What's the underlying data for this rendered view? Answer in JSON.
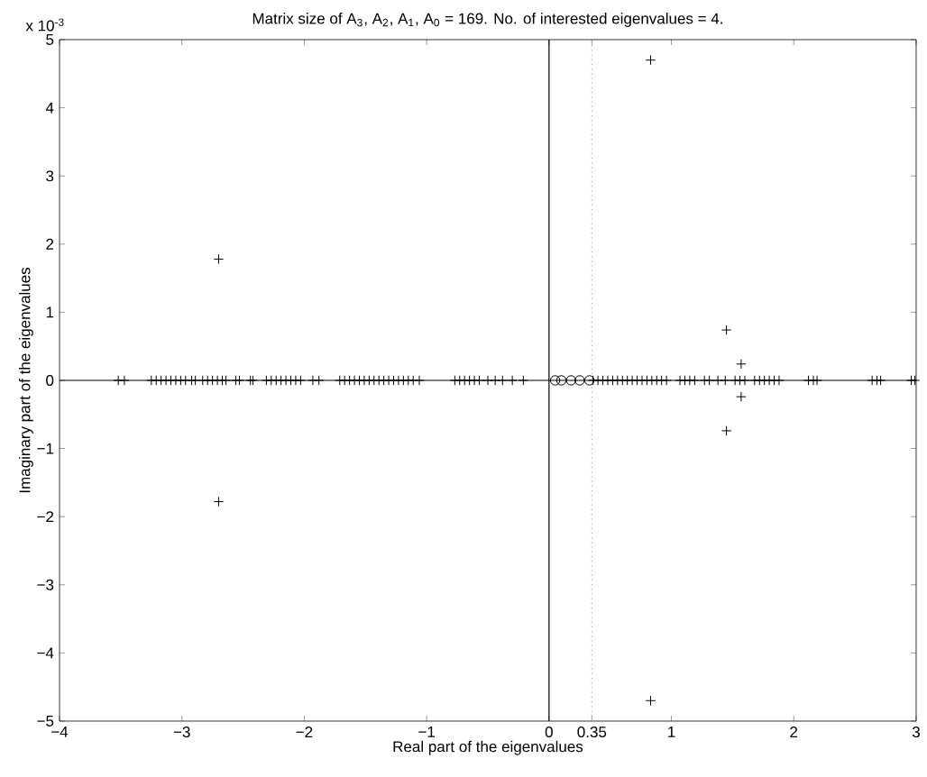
{
  "chart_data": {
    "type": "scatter",
    "title": "Matrix size of A$_{3}$, A$_{2}$, A$_{1}$, A$_{0}$ = 169. No. of interested eigenvalues = 4.",
    "xlabel": "Real part of the eigenvalues",
    "ylabel": "Imaginary part of the eigenvalues",
    "annotations": [
      "x 10$^{-3}$"
    ],
    "xlim": [
      -4,
      3
    ],
    "ylim": [
      -5,
      5
    ],
    "xticks": [
      {
        "value": -4,
        "label": "−4"
      },
      {
        "value": -3,
        "label": "−3"
      },
      {
        "value": -2,
        "label": "−2"
      },
      {
        "value": -1,
        "label": "−1"
      },
      0,
      0.35,
      1,
      2,
      3
    ],
    "yticks": [
      {
        "value": -5,
        "label": "−5"
      },
      {
        "value": -4,
        "label": "−4"
      },
      {
        "value": -3,
        "label": "−3"
      },
      {
        "value": -2,
        "label": "−2"
      },
      {
        "value": -1,
        "label": "−1"
      },
      0,
      1,
      2,
      3,
      4,
      5
    ],
    "grid": false,
    "series": [
      {
        "color": "#000000",
        "marker": "cross",
        "x": [
          -3.52,
          -3.47,
          -3.25,
          -3.21,
          -3.17,
          -3.13,
          -3.09,
          -3.05,
          -3.01,
          -2.97,
          -2.92,
          -2.89,
          -2.83,
          -2.79,
          -2.75,
          -2.71,
          -2.67,
          -2.64,
          -2.56,
          -2.53,
          -2.44,
          -2.42,
          -2.31,
          -2.27,
          -2.23,
          -2.19,
          -2.15,
          -2.11,
          -2.07,
          -2.03,
          -1.93,
          -1.88,
          -1.71,
          -1.67,
          -1.63,
          -1.59,
          -1.55,
          -1.51,
          -1.47,
          -1.43,
          -1.39,
          -1.35,
          -1.31,
          -1.27,
          -1.23,
          -1.19,
          -1.15,
          -1.11,
          -1.06,
          -0.77,
          -0.73,
          -0.69,
          -0.65,
          -0.61,
          -0.57,
          -0.5,
          -0.44,
          -0.38,
          -0.3,
          -0.21,
          0.36,
          0.4,
          0.44,
          0.48,
          0.52,
          0.56,
          0.6,
          0.64,
          0.68,
          0.72,
          0.76,
          0.8,
          0.84,
          0.88,
          0.92,
          0.96,
          1.07,
          1.11,
          1.15,
          1.19,
          1.27,
          1.31,
          1.38,
          1.44,
          1.52,
          1.56,
          1.6,
          1.68,
          1.72,
          1.76,
          1.8,
          1.84,
          1.88,
          2.12,
          2.16,
          2.19,
          2.64,
          2.68,
          2.71,
          2.96,
          2.99,
          -2.7,
          -2.7,
          0.83,
          0.83,
          1.45,
          1.45,
          1.57,
          1.57
        ],
        "values": [
          0,
          0,
          0,
          0,
          0,
          0,
          0,
          0,
          0,
          0,
          0,
          0,
          0,
          0,
          0,
          0,
          0,
          0,
          0,
          0,
          0,
          0,
          0,
          0,
          0,
          0,
          0,
          0,
          0,
          0,
          0,
          0,
          0,
          0,
          0,
          0,
          0,
          0,
          0,
          0,
          0,
          0,
          0,
          0,
          0,
          0,
          0,
          0,
          0,
          0,
          0,
          0,
          0,
          0,
          0,
          0,
          0,
          0,
          0,
          0,
          0,
          0,
          0,
          0,
          0,
          0,
          0,
          0,
          0,
          0,
          0,
          0,
          0,
          0,
          0,
          0,
          0,
          0,
          0,
          0,
          0,
          0,
          0,
          0,
          0,
          0,
          0,
          0,
          0,
          0,
          0,
          0,
          0,
          0,
          0,
          0,
          0,
          0,
          0,
          0,
          0,
          1.78,
          -1.78,
          4.7,
          -4.7,
          0.74,
          -0.74,
          0.24,
          -0.24
        ]
      },
      {
        "color": "#000000",
        "marker": "circle",
        "x": [
          0.05,
          0.1,
          0.18,
          0.25,
          0.33
        ],
        "values": [
          0,
          0,
          0,
          0,
          0
        ]
      }
    ],
    "ref_lines": [
      {
        "axis": "x",
        "value": 0,
        "color": "#000000",
        "line_style": "solid"
      },
      {
        "axis": "x",
        "value": 0.35,
        "color": "#aaaaaa",
        "line_style": "dotted"
      },
      {
        "axis": "y",
        "value": 0,
        "color": "#000000",
        "line_style": "solid"
      }
    ]
  }
}
